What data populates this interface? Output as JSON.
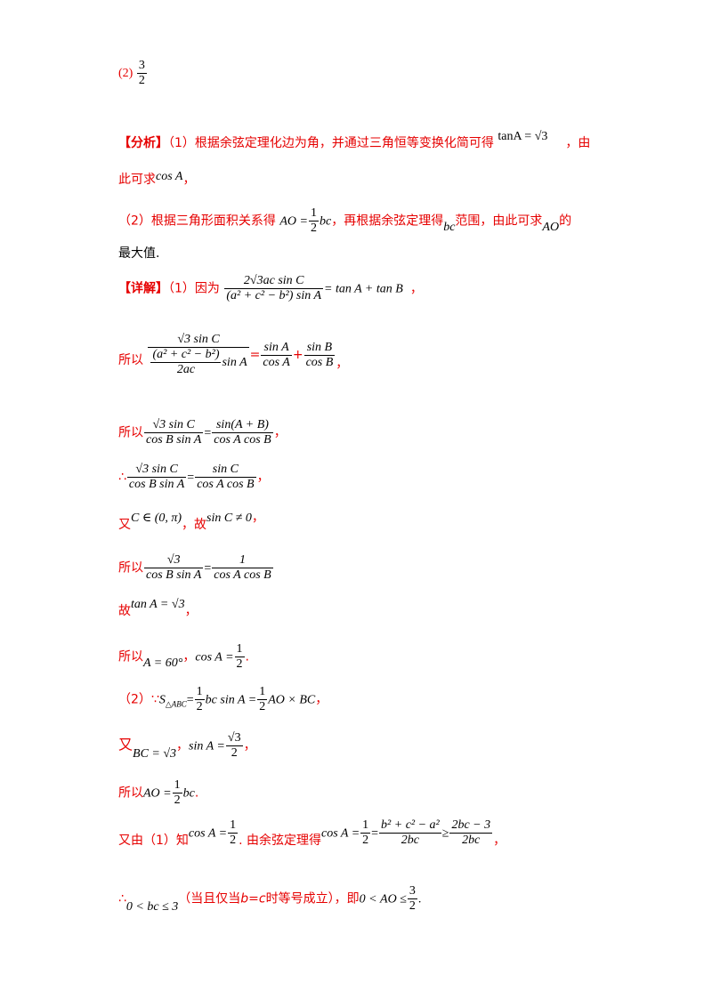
{
  "part2_header": {
    "label": "(2)",
    "num": "3",
    "den": "2"
  },
  "analysis": {
    "tag": "【分析】",
    "p1_text": "（1）根据余弦定理化边为角，并通过三角恒等变换化简可得",
    "p1_formula": "tanA = √3",
    "p1_end": "，由",
    "p1b_text": "此可求",
    "p1b_formula": "cos A",
    "p1b_end": "，",
    "p2_text": "（2）根据三角形面积关系得",
    "p2_f_left": "AO =",
    "p2_f_num": "1",
    "p2_f_den": "2",
    "p2_f_right": "bc",
    "p2_mid": "，再根据余弦定理得",
    "p2_bc": "bc",
    "p2_mid2": "范围，由此可求",
    "p2_ao": "AO",
    "p2_end": "的",
    "p2b_text": "最大值."
  },
  "detail": {
    "tag": "【详解】",
    "l1_text": "（1）因为",
    "l1_num": "2√3ac sin C",
    "l1_den": "(a² + c² − b²) sin A",
    "l1_right": "= tan A + tan B",
    "l1_end": "，",
    "l2_text": "所以",
    "l2_num": "√3 sin C",
    "l2_den_num": "(a² + c² − b²)",
    "l2_den_den": "2ac",
    "l2_den_right": "sin A",
    "l2_f1_num": "sin A",
    "l2_f1_den": "cos A",
    "l2_f2_num": "sin B",
    "l2_f2_den": "cos B",
    "l2_end": "，",
    "l3_text": "所以",
    "l3_f1_num": "√3 sin C",
    "l3_f1_den": "cos B sin A",
    "l3_f2_num": "sin(A + B)",
    "l3_f2_den": "cos A cos B",
    "l3_end": "，",
    "l4_text": "∴",
    "l4_f1_num": "√3 sin C",
    "l4_f1_den": "cos B sin A",
    "l4_f2_num": "sin C",
    "l4_f2_den": "cos A cos B",
    "l4_end": "，",
    "l5_text": "又",
    "l5_formula": "C ∈ (0, π)",
    "l5_mid": "，故",
    "l5_formula2": "sin C ≠ 0",
    "l5_end": "，",
    "l6_text": "所以",
    "l6_f1_num": "√3",
    "l6_f1_den": "cos B sin A",
    "l6_f2_num": "1",
    "l6_f2_den": "cos A cos B",
    "l7_text": "故",
    "l7_formula": "tan A = √3",
    "l7_end": "，",
    "l8_text": "所以",
    "l8_formula": "A = 60°",
    "l8_mid": "，",
    "l8_f_left": "cos A =",
    "l8_f_num": "1",
    "l8_f_den": "2",
    "l8_end": ".",
    "l9_text": "（2）∵",
    "l9_s": "S",
    "l9_sub": "△ABC",
    "l9_eq": "=",
    "l9_f1_num": "1",
    "l9_f1_den": "2",
    "l9_mid": "bc sin A =",
    "l9_f2_num": "1",
    "l9_f2_den": "2",
    "l9_right": "AO × BC",
    "l9_end": "，",
    "l10_text": "又",
    "l10_formula": "BC = √3",
    "l10_mid": "，",
    "l10_f_left": "sin A =",
    "l10_f_num": "√3",
    "l10_f_den": "2",
    "l10_end": "，",
    "l11_text": "所以",
    "l11_f_left": "AO =",
    "l11_f_num": "1",
    "l11_f_den": "2",
    "l11_f_right": "bc",
    "l11_end": ".",
    "l12_text": "又由（1）知",
    "l12_f_left": "cos A =",
    "l12_f_num": "1",
    "l12_f_den": "2",
    "l12_mid": ". 由余弦定理得",
    "l12_g_left": "cos A =",
    "l12_g1_num": "1",
    "l12_g1_den": "2",
    "l12_g_eq": "=",
    "l12_g2_num": "b² + c² − a²",
    "l12_g2_den": "2bc",
    "l12_g_ge": "≥",
    "l12_g3_num": "2bc − 3",
    "l12_g3_den": "2bc",
    "l12_end": "，",
    "l13_text": "∴",
    "l13_formula": "0 < bc ≤ 3",
    "l13_paren_a": "（当且仅当",
    "l13_bc": "b=c",
    "l13_paren_b": "时等号成立），即",
    "l13_f_left": "0 < AO ≤",
    "l13_f_num": "3",
    "l13_f_den": "2",
    "l13_end": "."
  }
}
